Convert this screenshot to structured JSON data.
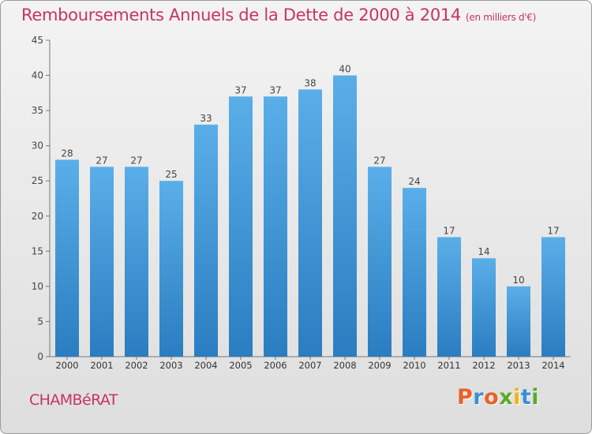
{
  "chart_data": {
    "type": "bar",
    "title": "Remboursements Annuels de la Dette de 2000 à 2014",
    "unit_note": "(en milliers d'€)",
    "categories": [
      "2000",
      "2001",
      "2002",
      "2003",
      "2004",
      "2005",
      "2006",
      "2007",
      "2008",
      "2009",
      "2010",
      "2011",
      "2012",
      "2013",
      "2014"
    ],
    "values": [
      28,
      27,
      27,
      25,
      33,
      37,
      37,
      38,
      40,
      27,
      24,
      17,
      14,
      10,
      17
    ],
    "ylim": [
      0,
      45
    ],
    "yticks": [
      0,
      5,
      10,
      15,
      20,
      25,
      30,
      35,
      40,
      45
    ],
    "grid": false,
    "data_labels": true,
    "bar_color_top": "#5aaee8",
    "bar_color_bottom": "#2a7dc0"
  },
  "footer": {
    "commune": "CHAMBéRAT",
    "logo_text": "Proxiti",
    "logo_colors": [
      "#e8622a",
      "#3a8fd6",
      "#e8622a",
      "#5aaa2a",
      "#f0b418",
      "#3a8fd6",
      "#5aaa2a"
    ]
  }
}
